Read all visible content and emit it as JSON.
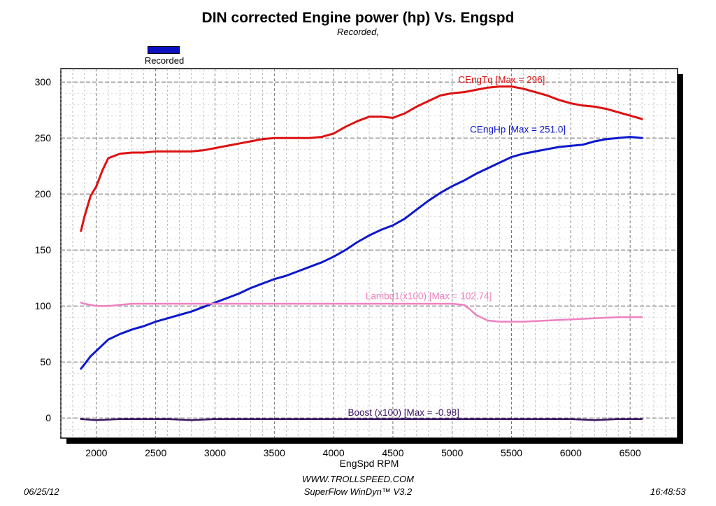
{
  "header": {
    "title": "DIN corrected Engine power (hp) Vs. Engspd",
    "subtitle": "Recorded,"
  },
  "legend": {
    "label": "Recorded",
    "color": "#0a10c0"
  },
  "footer": {
    "date": "06/25/12",
    "url": "WWW.TROLLSPEED.COM",
    "software": "SuperFlow WinDyn™ V3.2",
    "time": "16:48:53"
  },
  "chart_data": {
    "type": "line",
    "title": "DIN corrected Engine power (hp) Vs. Engspd",
    "subtitle": "Recorded,",
    "xlabel": "EngSpd RPM",
    "ylabel": "",
    "xlim": [
      1700,
      6900
    ],
    "ylim": [
      -18,
      312
    ],
    "xticks": [
      2000,
      2500,
      3000,
      3500,
      4000,
      4500,
      5000,
      5500,
      6000,
      6500
    ],
    "yticks": [
      0,
      50,
      100,
      150,
      200,
      250,
      300
    ],
    "grid": true,
    "legend_position": "top-left",
    "series": [
      {
        "name": "CEngTq",
        "label": "CEngTq [Max = 296]",
        "color": "#dd1111",
        "x": [
          1870,
          1900,
          1950,
          2000,
          2050,
          2100,
          2200,
          2300,
          2400,
          2500,
          2600,
          2700,
          2800,
          2900,
          3000,
          3100,
          3200,
          3300,
          3400,
          3500,
          3600,
          3700,
          3800,
          3900,
          4000,
          4100,
          4200,
          4300,
          4400,
          4500,
          4600,
          4700,
          4800,
          4900,
          5000,
          5100,
          5200,
          5300,
          5400,
          5500,
          5600,
          5700,
          5800,
          5900,
          6000,
          6100,
          6200,
          6300,
          6400,
          6500,
          6600
        ],
        "y": [
          167,
          180,
          198,
          207,
          221,
          232,
          236,
          237,
          237,
          238,
          238,
          238,
          238,
          239,
          241,
          243,
          245,
          247,
          249,
          250,
          250,
          250,
          250,
          251,
          254,
          260,
          265,
          269,
          269,
          268,
          272,
          278,
          283,
          288,
          290,
          291,
          293,
          295,
          296,
          296,
          294,
          291,
          288,
          284,
          281,
          279,
          278,
          276,
          273,
          270,
          267
        ]
      },
      {
        "name": "CEngHp",
        "label": "CEngHp [Max = 251.0]",
        "color": "#0c18cc",
        "x": [
          1870,
          1900,
          1950,
          2000,
          2050,
          2100,
          2200,
          2300,
          2400,
          2500,
          2600,
          2700,
          2800,
          2900,
          3000,
          3100,
          3200,
          3300,
          3400,
          3500,
          3600,
          3700,
          3800,
          3900,
          4000,
          4100,
          4200,
          4300,
          4400,
          4500,
          4600,
          4700,
          4800,
          4900,
          5000,
          5100,
          5200,
          5300,
          5400,
          5500,
          5600,
          5700,
          5800,
          5900,
          6000,
          6100,
          6200,
          6300,
          6400,
          6500,
          6600
        ],
        "y": [
          44,
          48,
          55,
          60,
          65,
          70,
          75,
          79,
          82,
          86,
          89,
          92,
          95,
          99,
          103,
          107,
          111,
          116,
          120,
          124,
          127,
          131,
          135,
          139,
          144,
          150,
          157,
          163,
          168,
          172,
          178,
          186,
          194,
          201,
          207,
          212,
          218,
          223,
          228,
          233,
          236,
          238,
          240,
          242,
          243,
          244,
          247,
          249,
          250,
          251,
          250
        ]
      },
      {
        "name": "Lambd1",
        "label": "Lambd1(x100) [Max = 102.74]",
        "color": "#ee80c0",
        "x": [
          1870,
          1900,
          2000,
          2100,
          2200,
          2300,
          2400,
          2600,
          2800,
          3000,
          3200,
          3400,
          3600,
          3800,
          4000,
          4200,
          4400,
          4600,
          4800,
          5000,
          5100,
          5150,
          5200,
          5300,
          5400,
          5500,
          5600,
          5800,
          6000,
          6200,
          6400,
          6600
        ],
        "y": [
          103,
          102,
          100,
          100,
          101,
          102,
          102,
          102,
          102,
          102,
          102,
          102,
          102,
          102,
          102,
          102,
          102,
          102,
          102,
          102,
          101,
          97,
          92,
          87,
          86,
          86,
          86,
          87,
          88,
          89,
          90,
          90
        ]
      },
      {
        "name": "Boost",
        "label": "Boost (x100) [Max = -0.98]",
        "color": "#3a1560",
        "x": [
          1870,
          2000,
          2200,
          2400,
          2600,
          2800,
          3000,
          3200,
          3400,
          3600,
          3800,
          4000,
          4200,
          4400,
          4600,
          4800,
          5000,
          5200,
          5400,
          5600,
          5800,
          6000,
          6200,
          6400,
          6600
        ],
        "y": [
          -1,
          -2,
          -1,
          -1,
          -1,
          -2,
          -1,
          -1,
          -1,
          -1,
          -1,
          -1,
          -1,
          -1,
          -1,
          -1,
          -1,
          -1,
          -1,
          -1,
          -1,
          -1,
          -2,
          -1,
          -1
        ]
      }
    ]
  }
}
